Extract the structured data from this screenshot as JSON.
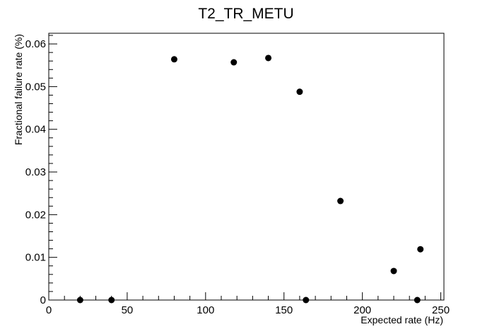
{
  "chart_data": {
    "type": "scatter",
    "title": "T2_TR_METU",
    "xlabel": "Expected rate (Hz)",
    "ylabel": "Fractional failure rate (%)",
    "xlim": [
      0,
      252
    ],
    "ylim": [
      0,
      0.0625
    ],
    "x_ticks": [
      0,
      50,
      100,
      150,
      200,
      250
    ],
    "x_tick_labels": [
      "0",
      "50",
      "100",
      "150",
      "200",
      "250"
    ],
    "y_ticks": [
      0,
      0.01,
      0.02,
      0.03,
      0.04,
      0.05,
      0.06
    ],
    "y_tick_labels": [
      "0",
      "0.01",
      "0.02",
      "0.03",
      "0.04",
      "0.05",
      "0.06"
    ],
    "grid": false,
    "legend": "none",
    "marker_color": "#000000",
    "points": [
      {
        "x": 20,
        "y": 0.0
      },
      {
        "x": 40,
        "y": 0.0
      },
      {
        "x": 80,
        "y": 0.0564
      },
      {
        "x": 118,
        "y": 0.0557
      },
      {
        "x": 140,
        "y": 0.0567
      },
      {
        "x": 160,
        "y": 0.0488
      },
      {
        "x": 164,
        "y": 0.0
      },
      {
        "x": 186,
        "y": 0.0232
      },
      {
        "x": 220,
        "y": 0.0068
      },
      {
        "x": 235,
        "y": 0.0
      },
      {
        "x": 237,
        "y": 0.0119
      }
    ]
  }
}
